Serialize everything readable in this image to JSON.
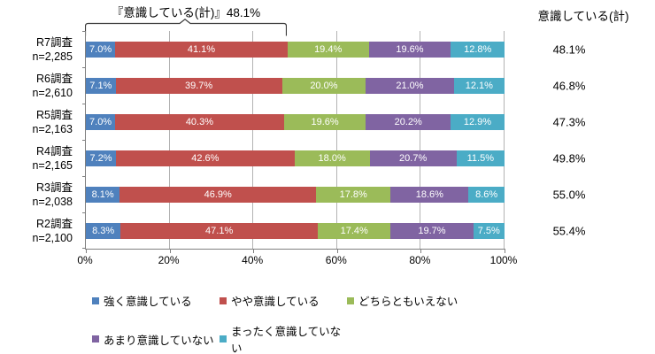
{
  "chart_data": {
    "type": "bar",
    "orientation": "horizontal",
    "stacked": true,
    "annotation": {
      "text": "『意識している(計)』48.1%",
      "span_from_pct": 0,
      "span_to_pct": 48.1
    },
    "categories": [
      {
        "label": "R7調査",
        "n": "n=2,285"
      },
      {
        "label": "R6調査",
        "n": "n=2,610"
      },
      {
        "label": "R5調査",
        "n": "n=2,163"
      },
      {
        "label": "R4調査",
        "n": "n=2,165"
      },
      {
        "label": "R3調査",
        "n": "n=2,038"
      },
      {
        "label": "R2調査",
        "n": "n=2,100"
      }
    ],
    "series": [
      {
        "name": "強く意識している",
        "color": "#4F81BD",
        "values": [
          7.0,
          7.1,
          7.0,
          7.2,
          8.1,
          8.3
        ]
      },
      {
        "name": "やや意識している",
        "color": "#C0504D",
        "values": [
          41.1,
          39.7,
          40.3,
          42.6,
          46.9,
          47.1
        ]
      },
      {
        "name": "どちらともいえない",
        "color": "#9BBB59",
        "values": [
          19.4,
          20.0,
          19.6,
          18.0,
          17.8,
          17.4
        ]
      },
      {
        "name": "あまり意識していない",
        "color": "#8064A2",
        "values": [
          19.6,
          21.0,
          20.2,
          20.7,
          18.6,
          19.7
        ]
      },
      {
        "name": "まったく意識していない",
        "color": "#4BACC6",
        "values": [
          12.8,
          12.1,
          12.9,
          11.5,
          8.6,
          7.5
        ]
      }
    ],
    "totals_column": {
      "header": "意識している(計)",
      "values": [
        "48.1%",
        "46.8%",
        "47.3%",
        "49.8%",
        "55.0%",
        "55.4%"
      ]
    },
    "x_axis": {
      "ticks": [
        "0%",
        "20%",
        "40%",
        "60%",
        "80%",
        "100%"
      ],
      "min": 0,
      "max": 100,
      "gridlines": true
    },
    "value_label_suffix": "%",
    "value_label_color": "#FFFFFF",
    "legend": {
      "position": "bottom",
      "rows": [
        [
          0,
          1,
          2
        ],
        [
          3,
          4
        ]
      ]
    }
  }
}
